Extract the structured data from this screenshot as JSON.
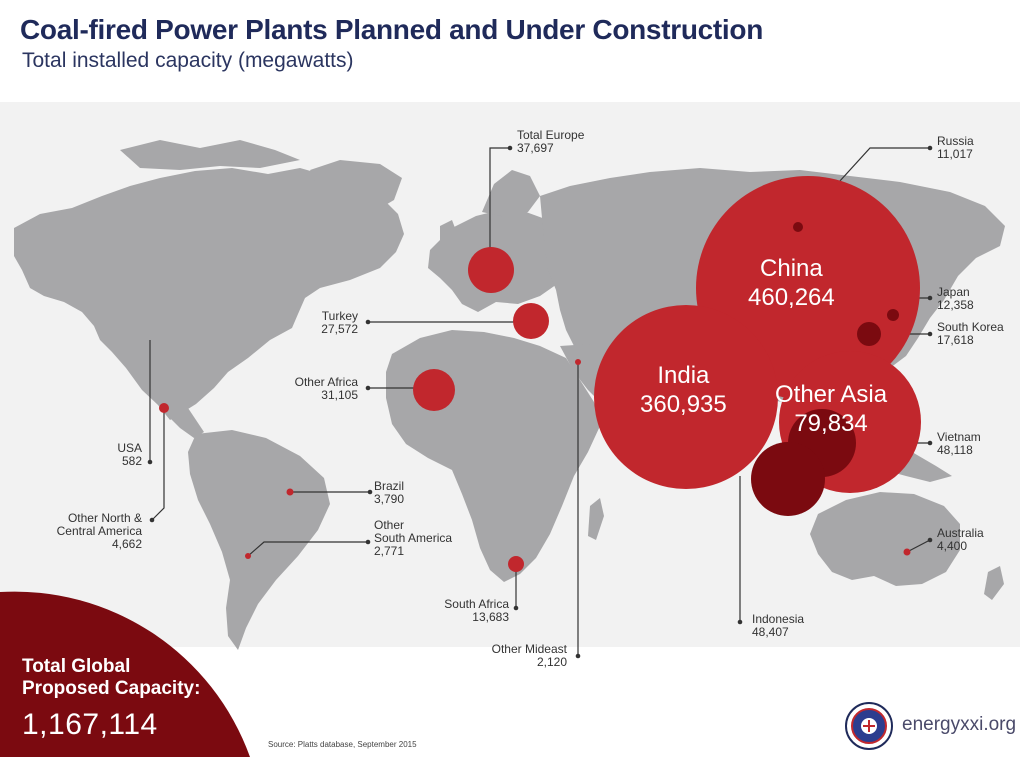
{
  "header": {
    "title": "Coal-fired Power Plants Planned and Under Construction",
    "subtitle": "Total installed capacity (megawatts)"
  },
  "colors": {
    "land": "#a7a7a9",
    "background_band": "#f2f2f2",
    "bubble_red": "#c1272d",
    "bubble_dark": "#7b0a10",
    "leader_line": "#333333",
    "title_navy": "#1f2a5a"
  },
  "regions": [
    {
      "name": "Total Europe",
      "value": "37,697"
    },
    {
      "name": "Russia",
      "value": "11,017"
    },
    {
      "name": "Turkey",
      "value": "27,572"
    },
    {
      "name": "China",
      "value": "460,264"
    },
    {
      "name": "Japan",
      "value": "12,358"
    },
    {
      "name": "South Korea",
      "value": "17,618"
    },
    {
      "name": "Other Africa",
      "value": "31,105"
    },
    {
      "name": "India",
      "value": "360,935"
    },
    {
      "name": "Other Asia",
      "value": "79,834"
    },
    {
      "name": "Vietnam",
      "value": "48,118"
    },
    {
      "name": "USA",
      "value": "582"
    },
    {
      "name": "Brazil",
      "value": "3,790"
    },
    {
      "name": "Other North & Central America",
      "value": "4,662"
    },
    {
      "name": "Other South America",
      "value": "2,771"
    },
    {
      "name": "Australia",
      "value": "4,400"
    },
    {
      "name": "South Africa",
      "value": "13,683"
    },
    {
      "name": "Indonesia",
      "value": "48,407"
    },
    {
      "name": "Other Mideast",
      "value": "2,120"
    }
  ],
  "label_lines": {
    "other_na_line1": "Other North &",
    "other_na_line2": "Central America",
    "other_sa_line1": "Other",
    "other_sa_line2": "South America"
  },
  "total": {
    "label_line1": "Total Global",
    "label_line2": "Proposed Capacity:",
    "value": "1,167,114"
  },
  "footer": {
    "source": "Source: Platts database, September 2015",
    "website": "energyxxi.org",
    "logo_icon": "energyxxi-seal-logo"
  }
}
